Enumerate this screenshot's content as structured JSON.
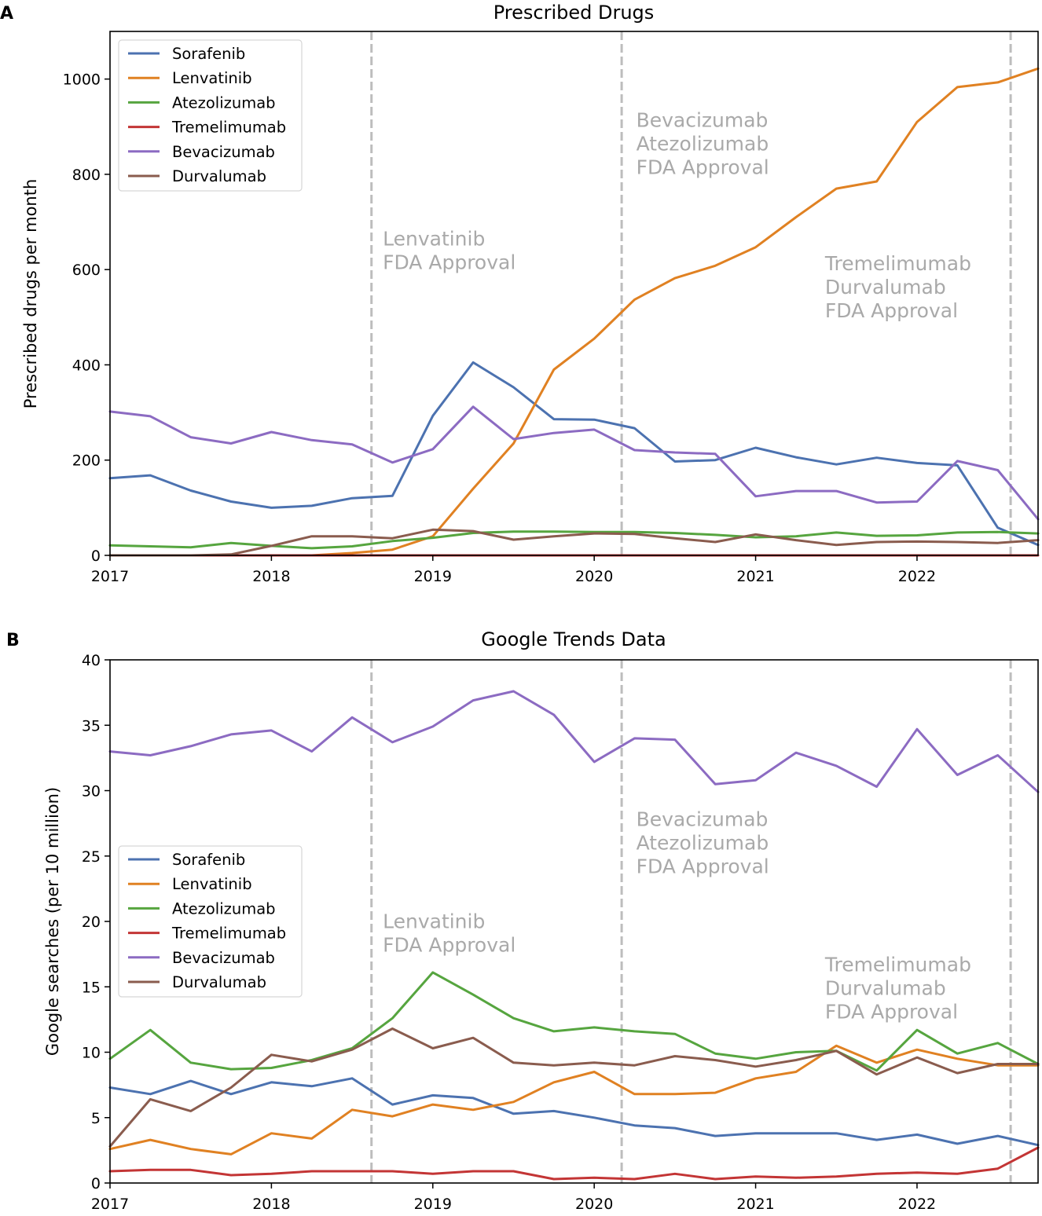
{
  "colors": {
    "Sorafenib": "#4c72b0",
    "Lenvatinib": "#e08122",
    "Atezolizumab": "#56a53f",
    "Tremelimumab": "#c33535",
    "Bevacizumab": "#8c6bc2",
    "Durvalumab": "#8a5c4e",
    "annotation": "#a9a9a9",
    "vline": "#bdbdbd"
  },
  "chart_data": [
    {
      "panel": "A",
      "type": "line",
      "title": "Prescribed Drugs",
      "xlabel": "",
      "ylabel": "Prescribed drugs per month",
      "xlim": [
        2017.0,
        2022.75
      ],
      "ylim": [
        0,
        1100
      ],
      "xticks": [
        2017,
        2018,
        2019,
        2020,
        2021,
        2022
      ],
      "yticks": [
        0,
        200,
        400,
        600,
        800,
        1000
      ],
      "x": [
        2017.0,
        2017.25,
        2017.5,
        2017.75,
        2018.0,
        2018.25,
        2018.5,
        2018.75,
        2019.0,
        2019.25,
        2019.5,
        2019.75,
        2020.0,
        2020.25,
        2020.5,
        2020.75,
        2021.0,
        2021.25,
        2021.5,
        2021.75,
        2022.0,
        2022.25,
        2022.5,
        2022.75
      ],
      "series": [
        {
          "name": "Sorafenib",
          "values": [
            162,
            168,
            136,
            113,
            100,
            104,
            120,
            125,
            293,
            405,
            353,
            286,
            285,
            267,
            197,
            200,
            226,
            206,
            191,
            205,
            194,
            189,
            58,
            22
          ]
        },
        {
          "name": "Lenvatinib",
          "values": [
            0,
            0,
            0,
            0,
            0,
            0,
            5,
            12,
            40,
            140,
            235,
            390,
            455,
            537,
            582,
            608,
            647,
            710,
            770,
            785,
            910,
            983,
            993,
            1022
          ]
        },
        {
          "name": "Atezolizumab",
          "values": [
            21,
            19,
            17,
            26,
            20,
            15,
            19,
            30,
            37,
            47,
            50,
            50,
            49,
            49,
            47,
            43,
            38,
            40,
            48,
            41,
            42,
            48,
            49,
            46
          ]
        },
        {
          "name": "Tremelimumab",
          "values": [
            0,
            0,
            0,
            0,
            0,
            0,
            0,
            0,
            0,
            0,
            0,
            0,
            0,
            0,
            0,
            0,
            0,
            0,
            0,
            0,
            0,
            0,
            0,
            0
          ]
        },
        {
          "name": "Bevacizumab",
          "values": [
            302,
            292,
            248,
            235,
            259,
            242,
            233,
            195,
            223,
            312,
            244,
            257,
            264,
            221,
            216,
            213,
            124,
            135,
            135,
            111,
            113,
            198,
            179,
            76
          ]
        },
        {
          "name": "Durvalumab",
          "values": [
            0,
            0,
            0,
            2,
            20,
            40,
            40,
            36,
            54,
            51,
            33,
            40,
            46,
            45,
            36,
            28,
            44,
            32,
            22,
            28,
            29,
            28,
            26,
            32
          ]
        }
      ],
      "vlines": [
        2018.62,
        2020.17,
        2022.58
      ],
      "annotations": [
        {
          "x": 2018.69,
          "y": 667,
          "lines": [
            "Lenvatinib",
            "FDA Approval"
          ]
        },
        {
          "x": 2020.26,
          "y": 916,
          "lines": [
            "Bevacizumab",
            "Atezolizumab",
            "FDA Approval"
          ]
        },
        {
          "x": 2021.43,
          "y": 615,
          "lines": [
            "Tremelimumab",
            "Durvalumab",
            "FDA Approval"
          ]
        }
      ],
      "legend": {
        "position": "upper-left",
        "entries": [
          "Sorafenib",
          "Lenvatinib",
          "Atezolizumab",
          "Tremelimumab",
          "Bevacizumab",
          "Durvalumab"
        ]
      }
    },
    {
      "panel": "B",
      "type": "line",
      "title": "Google Trends Data",
      "xlabel": "",
      "ylabel": "Google searches (per 10 million)",
      "xlim": [
        2017.0,
        2022.75
      ],
      "ylim": [
        0,
        40
      ],
      "xticks": [
        2017,
        2018,
        2019,
        2020,
        2021,
        2022
      ],
      "yticks": [
        0,
        5,
        10,
        15,
        20,
        25,
        30,
        35,
        40
      ],
      "x": [
        2017.0,
        2017.25,
        2017.5,
        2017.75,
        2018.0,
        2018.25,
        2018.5,
        2018.75,
        2019.0,
        2019.25,
        2019.5,
        2019.75,
        2020.0,
        2020.25,
        2020.5,
        2020.75,
        2021.0,
        2021.25,
        2021.5,
        2021.75,
        2022.0,
        2022.25,
        2022.5,
        2022.75
      ],
      "series": [
        {
          "name": "Sorafenib",
          "values": [
            7.3,
            6.8,
            7.8,
            6.8,
            7.7,
            7.4,
            8.0,
            6.0,
            6.7,
            6.5,
            5.3,
            5.5,
            5.0,
            4.4,
            4.2,
            3.6,
            3.8,
            3.8,
            3.8,
            3.3,
            3.7,
            3.0,
            3.6,
            2.9
          ]
        },
        {
          "name": "Lenvatinib",
          "values": [
            2.6,
            3.3,
            2.6,
            2.2,
            3.8,
            3.4,
            5.6,
            5.1,
            6.0,
            5.6,
            6.2,
            7.7,
            8.5,
            6.8,
            6.8,
            6.9,
            8.0,
            8.5,
            10.5,
            9.2,
            10.2,
            9.5,
            9.0,
            9.0
          ]
        },
        {
          "name": "Atezolizumab",
          "values": [
            9.5,
            11.7,
            9.2,
            8.7,
            8.8,
            9.4,
            10.3,
            12.6,
            16.1,
            14.4,
            12.6,
            11.6,
            11.9,
            11.6,
            11.4,
            9.9,
            9.5,
            10.0,
            10.1,
            8.6,
            11.7,
            9.9,
            10.7,
            9.1
          ]
        },
        {
          "name": "Tremelimumab",
          "values": [
            0.9,
            1.0,
            1.0,
            0.6,
            0.7,
            0.9,
            0.9,
            0.9,
            0.7,
            0.9,
            0.9,
            0.3,
            0.4,
            0.3,
            0.7,
            0.3,
            0.5,
            0.4,
            0.5,
            0.7,
            0.8,
            0.7,
            1.1,
            2.7
          ]
        },
        {
          "name": "Bevacizumab",
          "values": [
            33.0,
            32.7,
            33.4,
            34.3,
            34.6,
            33.0,
            35.6,
            33.7,
            34.9,
            36.9,
            37.6,
            35.8,
            32.2,
            34.0,
            33.9,
            30.5,
            30.8,
            32.9,
            31.9,
            30.3,
            34.7,
            31.2,
            32.7,
            29.9
          ]
        },
        {
          "name": "Durvalumab",
          "values": [
            2.8,
            6.4,
            5.5,
            7.3,
            9.8,
            9.3,
            10.2,
            11.8,
            10.3,
            11.1,
            9.2,
            9.0,
            9.2,
            9.0,
            9.7,
            9.4,
            8.9,
            9.4,
            10.1,
            8.3,
            9.6,
            8.4,
            9.1,
            9.1
          ]
        }
      ],
      "vlines": [
        2018.62,
        2020.17,
        2022.58
      ],
      "annotations": [
        {
          "x": 2018.69,
          "y": 20.1,
          "lines": [
            "Lenvatinib",
            "FDA Approval"
          ]
        },
        {
          "x": 2020.26,
          "y": 27.9,
          "lines": [
            "Bevacizumab",
            "Atezolizumab",
            "FDA Approval"
          ]
        },
        {
          "x": 2021.43,
          "y": 16.8,
          "lines": [
            "Tremelimumab",
            "Durvalumab",
            "FDA Approval"
          ]
        }
      ],
      "legend": {
        "position": "center-left",
        "entries": [
          "Sorafenib",
          "Lenvatinib",
          "Atezolizumab",
          "Tremelimumab",
          "Bevacizumab",
          "Durvalumab"
        ]
      }
    }
  ]
}
